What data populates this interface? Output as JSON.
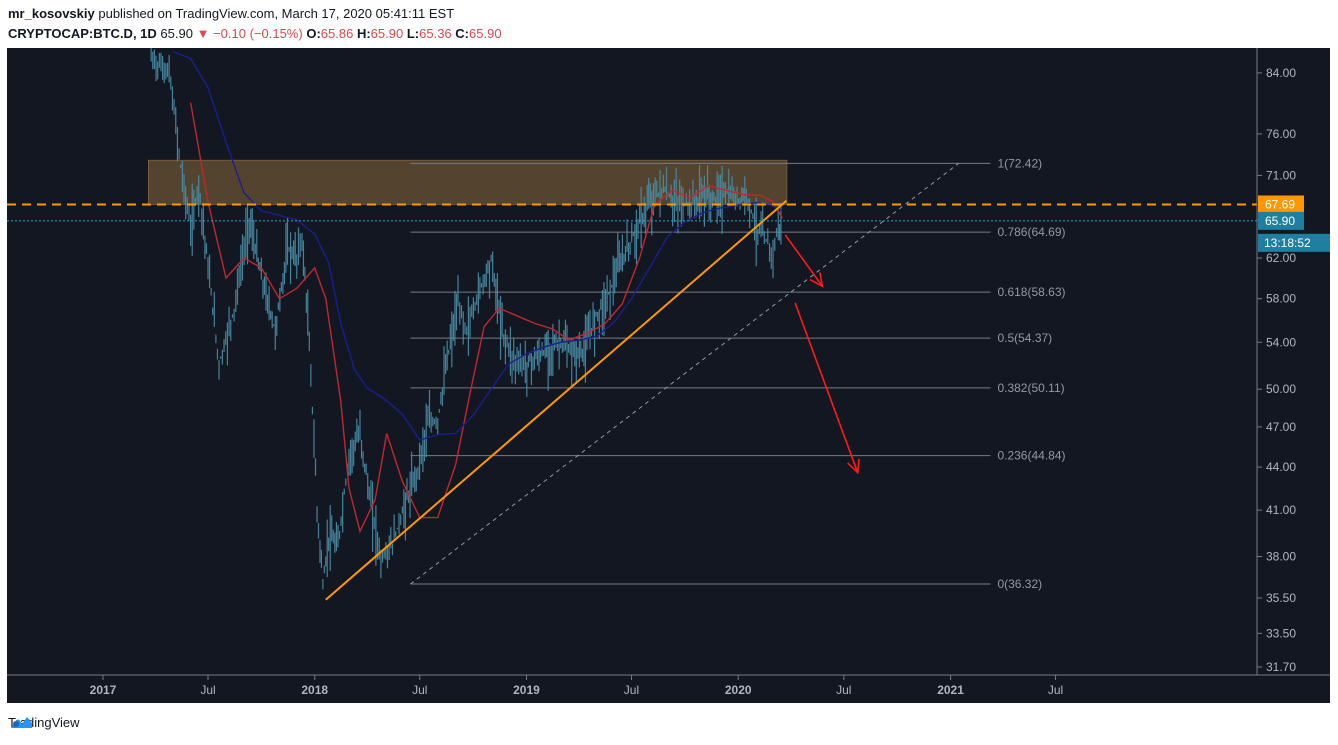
{
  "header": {
    "author": "mr_kosovskiy",
    "published_text": "published on TradingView.com, March 17, 2020 05:41:11 EST",
    "symbol": "CRYPTOCAP:BTC.D, 1D",
    "last": "65.90",
    "change": "▼ −0.10 (−0.15%)",
    "o_label": "O:",
    "o_value": "65.86",
    "h_label": "H:",
    "h_value": "65.90",
    "l_label": "L:",
    "l_value": "65.36",
    "c_label": "C:",
    "c_value": "65.90"
  },
  "footer": {
    "brand": "TradingView"
  },
  "colors": {
    "background": "#131722",
    "candle": "#4a8fa8",
    "ema_fast": "#c0282d",
    "ema_slow": "#1a1f8f",
    "trendline": "#ff9800",
    "resistance_zone": "#8b6a3a",
    "fib_line": "#787b86",
    "arrow": "#ff1a1a",
    "last_price_badge": "#1e7fa0",
    "level_badge": "#ff9800"
  },
  "chart_data": {
    "type": "line",
    "title": "CRYPTOCAP:BTC.D, 1D",
    "yscale": "log",
    "ylim": [
      31.7,
      87.5
    ],
    "y_ticks": [
      "84.00",
      "76.00",
      "71.00",
      "66.00",
      "62.00",
      "58.00",
      "54.00",
      "50.00",
      "47.00",
      "44.00",
      "41.00",
      "38.00",
      "35.50",
      "33.50",
      "31.70"
    ],
    "y_tick_values": [
      84,
      76,
      71,
      66,
      62,
      58,
      54,
      50,
      47,
      44,
      41,
      38,
      35.5,
      33.5,
      31.7
    ],
    "x_ticks": [
      {
        "label": "2017",
        "date": "2017-01-01",
        "bold": true
      },
      {
        "label": "Jul",
        "date": "2017-07-01",
        "bold": false
      },
      {
        "label": "2018",
        "date": "2018-01-01",
        "bold": true
      },
      {
        "label": "Jul",
        "date": "2018-07-01",
        "bold": false
      },
      {
        "label": "2019",
        "date": "2019-01-01",
        "bold": true
      },
      {
        "label": "Jul",
        "date": "2019-07-01",
        "bold": false
      },
      {
        "label": "2020",
        "date": "2020-01-01",
        "bold": true
      },
      {
        "label": "Jul",
        "date": "2020-07-01",
        "bold": false
      },
      {
        "label": "2021",
        "date": "2021-01-01",
        "bold": true
      },
      {
        "label": "Jul",
        "date": "2021-07-01",
        "bold": false
      }
    ],
    "series": [
      {
        "role": "price",
        "x": [
          "2017-03-25",
          "2017-04-25",
          "2017-05-15",
          "2017-06-01",
          "2017-06-15",
          "2017-07-01",
          "2017-07-20",
          "2017-08-15",
          "2017-09-10",
          "2017-10-01",
          "2017-10-25",
          "2017-11-15",
          "2017-12-01",
          "2017-12-10",
          "2017-12-20",
          "2018-01-05",
          "2018-01-15",
          "2018-01-25",
          "2018-02-10",
          "2018-03-01",
          "2018-03-20",
          "2018-04-05",
          "2018-04-25",
          "2018-05-15",
          "2018-06-01",
          "2018-06-25",
          "2018-07-15",
          "2018-08-01",
          "2018-08-20",
          "2018-09-05",
          "2018-09-20",
          "2018-10-10",
          "2018-11-01",
          "2018-11-20",
          "2018-12-10",
          "2018-12-30",
          "2019-01-20",
          "2019-02-10",
          "2019-03-01",
          "2019-03-20",
          "2019-04-10",
          "2019-05-01",
          "2019-05-20",
          "2019-06-10",
          "2019-06-26",
          "2019-07-15",
          "2019-08-05",
          "2019-08-25",
          "2019-09-10",
          "2019-09-25",
          "2019-10-15",
          "2019-11-01",
          "2019-11-20",
          "2019-12-10",
          "2019-12-30",
          "2020-01-15",
          "2020-02-01",
          "2020-02-15",
          "2020-03-01",
          "2020-03-10",
          "2020-03-17"
        ],
        "values": [
          86,
          84,
          72,
          65,
          70,
          61,
          52,
          57,
          66,
          60,
          55,
          63,
          62,
          64,
          56,
          41,
          36.3,
          39.2,
          38.6,
          44.8,
          46.5,
          42,
          37.8,
          38.8,
          40.8,
          43.5,
          47.2,
          47.5,
          53.2,
          57.3,
          55,
          58.5,
          61.8,
          55,
          52.5,
          52.1,
          52.7,
          53.5,
          54,
          52.9,
          53.2,
          56.5,
          58.1,
          61.3,
          63.2,
          65.7,
          68.4,
          69.5,
          68.1,
          67.8,
          67.6,
          68.9,
          68.2,
          69.1,
          68.2,
          68.9,
          65.2,
          64.1,
          62.4,
          65.3,
          65.9
        ]
      },
      {
        "role": "ema_fast",
        "x": [
          "2017-06-01",
          "2017-07-01",
          "2017-08-01",
          "2017-09-01",
          "2017-10-01",
          "2017-11-01",
          "2017-12-01",
          "2018-01-01",
          "2018-01-20",
          "2018-02-15",
          "2018-03-01",
          "2018-03-20",
          "2018-04-15",
          "2018-05-05",
          "2018-06-01",
          "2018-07-01",
          "2018-08-01",
          "2018-09-01",
          "2018-09-25",
          "2018-10-20",
          "2018-11-15",
          "2018-12-15",
          "2019-01-15",
          "2019-02-15",
          "2019-03-15",
          "2019-04-15",
          "2019-05-15",
          "2019-06-15",
          "2019-07-15",
          "2019-08-10",
          "2019-09-10",
          "2019-10-10",
          "2019-11-10",
          "2019-12-10",
          "2020-01-10",
          "2020-02-10",
          "2020-03-01",
          "2020-03-17"
        ],
        "values": [
          80,
          68,
          60,
          62,
          61,
          58,
          59,
          61,
          58,
          49,
          42.5,
          39.6,
          41.7,
          46.5,
          43,
          40.5,
          40.5,
          44.2,
          49.5,
          55.4,
          57.1,
          56.4,
          55.7,
          55.2,
          54.2,
          54.8,
          55.6,
          57.5,
          62,
          67.7,
          69.3,
          68.4,
          69.8,
          69.3,
          68.8,
          68.7,
          68,
          66.2
        ]
      },
      {
        "role": "ema_slow",
        "x": [
          "2017-05-01",
          "2017-06-01",
          "2017-07-01",
          "2017-08-01",
          "2017-09-01",
          "2017-10-01",
          "2017-11-01",
          "2017-12-01",
          "2018-01-01",
          "2018-01-25",
          "2018-02-15",
          "2018-03-10",
          "2018-04-01",
          "2018-05-01",
          "2018-06-01",
          "2018-07-01",
          "2018-08-01",
          "2018-09-01",
          "2018-10-01",
          "2018-11-01",
          "2018-12-01",
          "2019-01-01",
          "2019-02-01",
          "2019-03-01",
          "2019-04-01",
          "2019-05-01",
          "2019-06-01",
          "2019-07-01",
          "2019-08-01",
          "2019-09-01",
          "2019-10-01",
          "2019-11-01",
          "2019-12-01",
          "2020-01-01",
          "2020-02-01",
          "2020-03-01",
          "2020-03-17"
        ],
        "values": [
          87,
          86,
          82,
          75,
          69,
          67,
          66.5,
          66,
          64.5,
          61.5,
          55.7,
          51.7,
          50.1,
          49.2,
          48,
          46,
          46.4,
          46.5,
          47.9,
          50,
          52.1,
          53,
          53.6,
          54,
          54.2,
          54.5,
          55.8,
          58,
          61,
          64.2,
          65.8,
          66.8,
          67.3,
          67.6,
          67.9,
          67.5,
          67
        ]
      }
    ],
    "fib_levels": [
      {
        "label": "1(72.42)",
        "value": 72.42
      },
      {
        "label": "0.786(64.69)",
        "value": 64.69
      },
      {
        "label": "0.618(58.63)",
        "value": 58.63
      },
      {
        "label": "0.5(54.37)",
        "value": 54.37
      },
      {
        "label": "0.382(50.11)",
        "value": 50.11
      },
      {
        "label": "0.236(44.84)",
        "value": 44.84
      },
      {
        "label": "0(36.32)",
        "value": 36.32
      }
    ],
    "fib_range_x": [
      "2018-06-15",
      "2020-03-25"
    ],
    "fib_diagonal": {
      "from": [
        "2018-06-15",
        36.32
      ],
      "to": [
        "2021-01-15",
        72.42
      ]
    },
    "trendline": {
      "from": [
        "2018-01-20",
        35.4
      ],
      "to": [
        "2020-03-24",
        68.1
      ]
    },
    "resistance_zone": {
      "x": [
        "2017-03-20",
        "2020-03-25"
      ],
      "y": [
        67.69,
        72.8
      ]
    },
    "horizontal_level": {
      "value": 67.69,
      "label": "67.69"
    },
    "last_price": {
      "value": 65.9,
      "label": "65.90",
      "countdown": "13:18:52"
    },
    "arrows": [
      {
        "from": [
          "2020-03-22",
          64.4
        ],
        "to": [
          "2020-05-25",
          59.2
        ]
      },
      {
        "from": [
          "2020-04-08",
          57.6
        ],
        "to": [
          "2020-07-25",
          43.6
        ]
      }
    ]
  }
}
